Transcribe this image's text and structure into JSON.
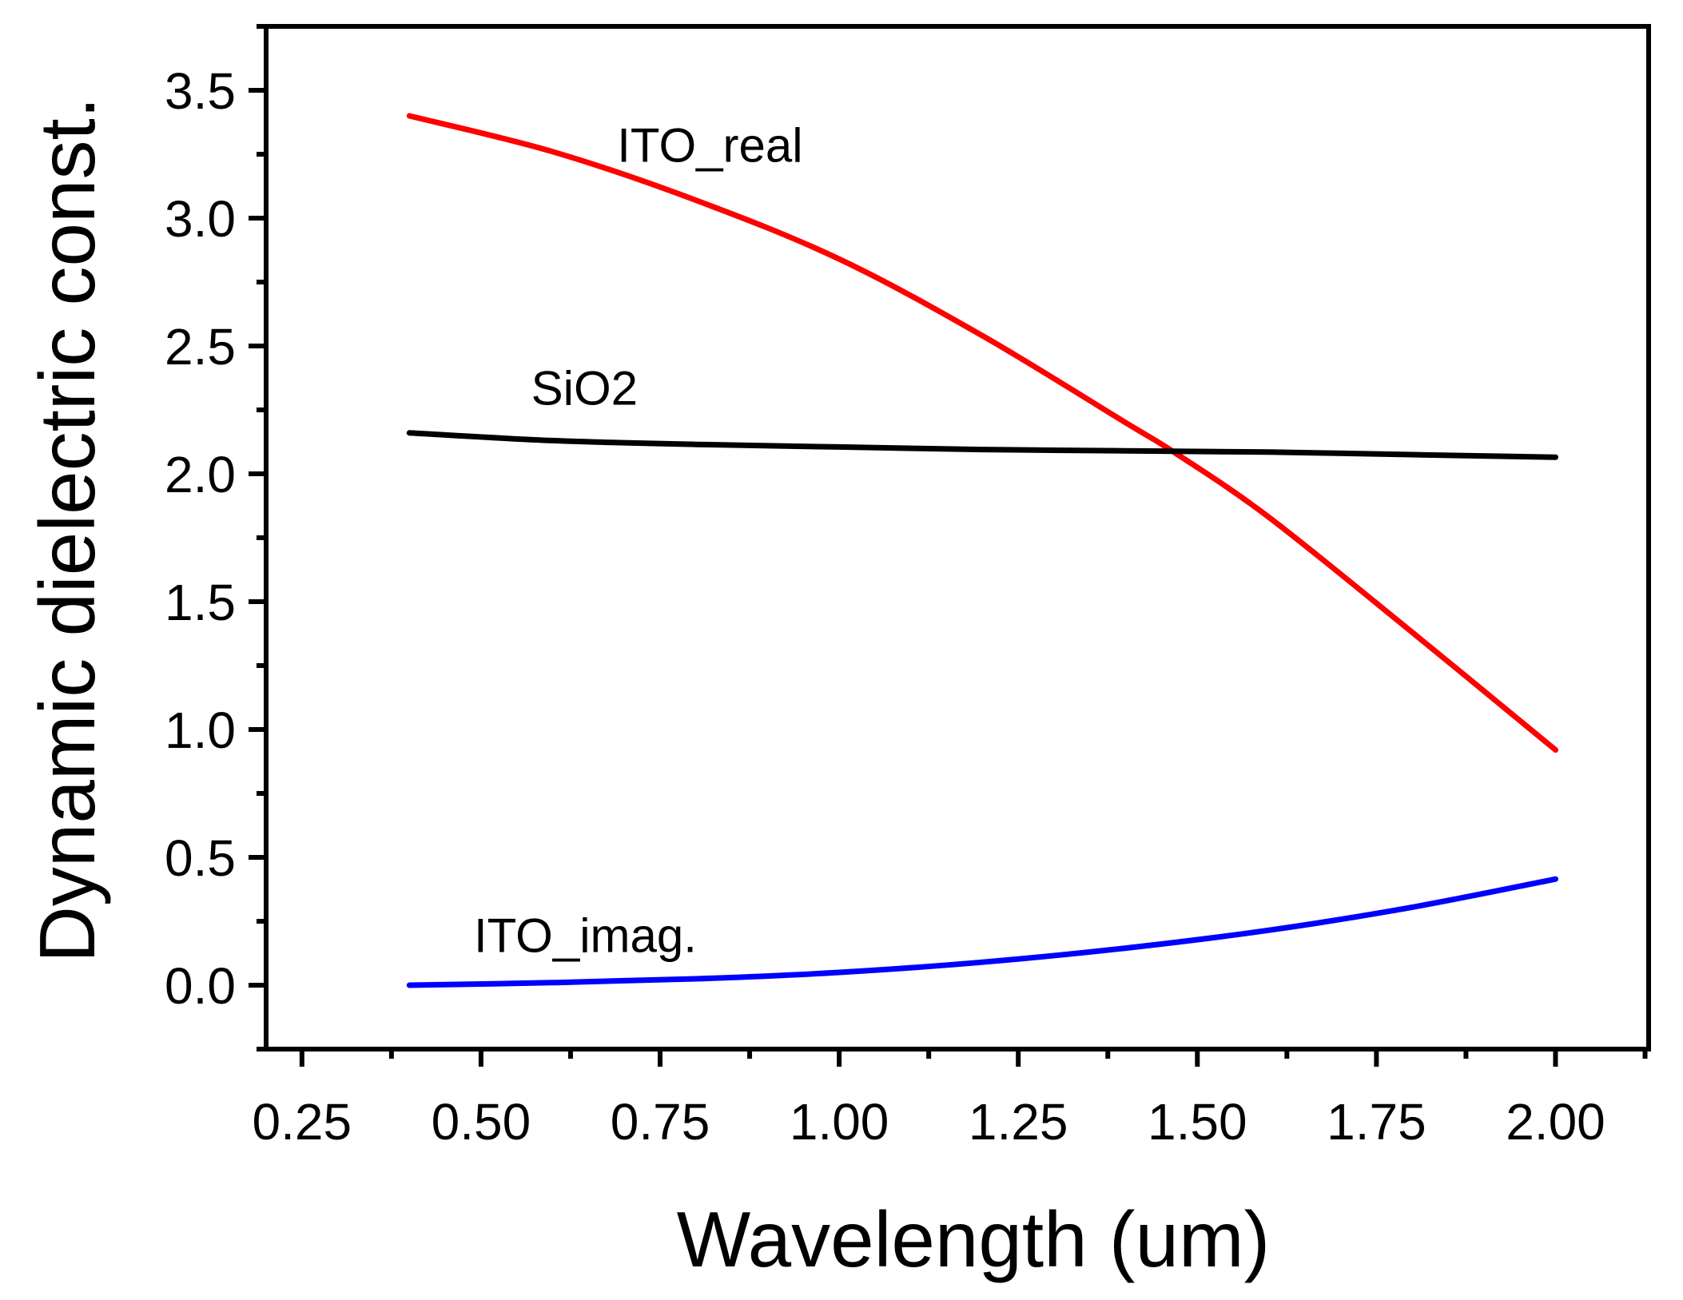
{
  "chart_data": {
    "type": "line",
    "title": "",
    "xlabel": "Wavelength (um)",
    "ylabel": "Dynamic dielectric const.",
    "xlim": [
      0.2,
      2.13
    ],
    "ylim": [
      -0.25,
      3.75
    ],
    "xticks": [
      0.25,
      0.5,
      0.75,
      1.0,
      1.25,
      1.5,
      1.75,
      2.0
    ],
    "xtick_labels": [
      "0.25",
      "0.50",
      "0.75",
      "1.00",
      "1.25",
      "1.50",
      "1.75",
      "2.00"
    ],
    "yticks": [
      0.0,
      0.5,
      1.0,
      1.5,
      2.0,
      2.5,
      3.0,
      3.5
    ],
    "ytick_labels": [
      "0.0",
      "0.5",
      "1.0",
      "1.5",
      "2.0",
      "2.5",
      "3.0",
      "3.5"
    ],
    "legend": "inline labels",
    "series": [
      {
        "name": "ITO_real",
        "color": "#ff0000",
        "x": [
          0.4,
          0.6,
          0.8,
          1.0,
          1.2,
          1.4,
          1.47,
          1.6,
          1.8,
          2.0
        ],
        "y": [
          3.4,
          3.26,
          3.07,
          2.84,
          2.54,
          2.2,
          2.08,
          1.83,
          1.38,
          0.92
        ],
        "label_anchor": {
          "x": 0.69,
          "y": 3.22
        }
      },
      {
        "name": "SiO2",
        "color": "#000000",
        "x": [
          0.4,
          0.6,
          0.8,
          1.0,
          1.2,
          1.4,
          1.6,
          1.8,
          2.0
        ],
        "y": [
          2.16,
          2.13,
          2.115,
          2.105,
          2.095,
          2.09,
          2.085,
          2.075,
          2.065
        ],
        "label_anchor": {
          "x": 0.57,
          "y": 2.27
        }
      },
      {
        "name": "ITO_imag.",
        "color": "#0000ff",
        "x": [
          0.4,
          0.6,
          0.8,
          1.0,
          1.2,
          1.4,
          1.6,
          1.8,
          2.0
        ],
        "y": [
          0.0,
          0.01,
          0.025,
          0.05,
          0.09,
          0.145,
          0.215,
          0.305,
          0.415
        ],
        "label_anchor": {
          "x": 0.49,
          "y": 0.13
        }
      }
    ]
  }
}
